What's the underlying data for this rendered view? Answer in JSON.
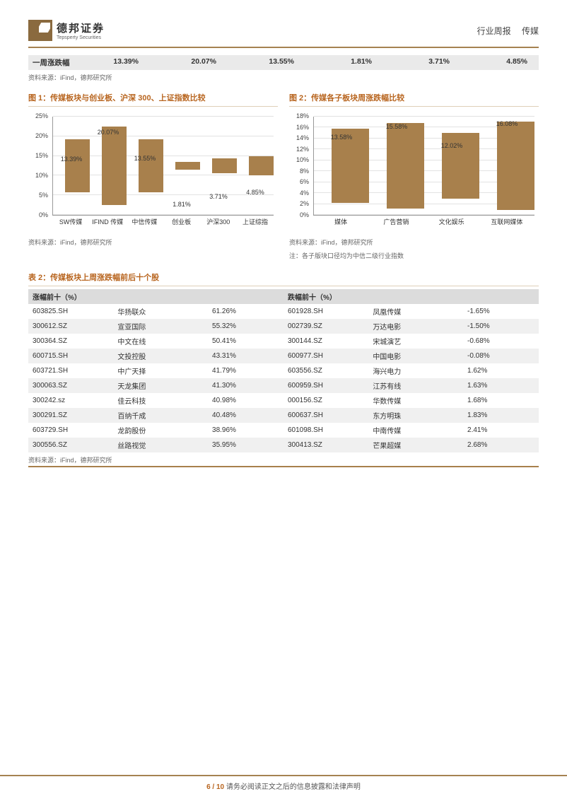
{
  "header": {
    "brand_zh": "德邦证券",
    "brand_en": "Tepsperty Securities",
    "category": "行业周报",
    "sector": "传媒"
  },
  "summary": {
    "label": "一周涨跌幅",
    "values": [
      "13.39%",
      "20.07%",
      "13.55%",
      "1.81%",
      "3.71%",
      "4.85%"
    ],
    "source": "资料来源：iFind，德邦研究所"
  },
  "chart1": {
    "title": "图 1：传媒板块与创业板、沪深 300、上证指数比较",
    "type": "bar",
    "y_max": 25,
    "y_step": 5,
    "y_suffix": "%",
    "categories": [
      "SW传媒",
      "IFIND 传媒",
      "中信传媒",
      "创业板",
      "沪深300",
      "上证综指"
    ],
    "values": [
      13.39,
      20.07,
      13.55,
      1.81,
      3.71,
      4.85
    ],
    "labels": [
      "13.39%",
      "20.07%",
      "13.55%",
      "1.81%",
      "3.71%",
      "4.85%"
    ],
    "bar_color": "#a8804c",
    "grid_color": "#e2e2e2",
    "source": "资料来源：iFind，德邦研究所"
  },
  "chart2": {
    "title": "图 2：传媒各子板块周涨跌幅比较",
    "type": "bar",
    "y_max": 18,
    "y_step": 2,
    "y_suffix": "%",
    "categories": [
      "媒体",
      "广告营销",
      "文化娱乐",
      "互联网媒体"
    ],
    "values": [
      13.58,
      15.58,
      12.02,
      16.08
    ],
    "labels": [
      "13.58%",
      "15.58%",
      "12.02%",
      "16.08%"
    ],
    "bar_color": "#a8804c",
    "grid_color": "#e2e2e2",
    "source": "资料来源：iFind，德邦研究所",
    "note": "注：各子版块口径均为中信二级行业指数"
  },
  "table": {
    "title": "表 2：传媒板块上周涨跌幅前后十个股",
    "header_left": "涨幅前十（%）",
    "header_right": "跌幅前十（%）",
    "rows": [
      {
        "lc": "603825.SH",
        "ln": "华扬联众",
        "lp": "61.26%",
        "rc": "601928.SH",
        "rn": "凤凰传媒",
        "rp": "-1.65%"
      },
      {
        "lc": "300612.SZ",
        "ln": "宣亚国际",
        "lp": "55.32%",
        "rc": "002739.SZ",
        "rn": "万达电影",
        "rp": "-1.50%"
      },
      {
        "lc": "300364.SZ",
        "ln": "中文在线",
        "lp": "50.41%",
        "rc": "300144.SZ",
        "rn": "宋城演艺",
        "rp": "-0.68%"
      },
      {
        "lc": "600715.SH",
        "ln": "文投控股",
        "lp": "43.31%",
        "rc": "600977.SH",
        "rn": "中国电影",
        "rp": "-0.08%"
      },
      {
        "lc": "603721.SH",
        "ln": "中广天择",
        "lp": "41.79%",
        "rc": "603556.SZ",
        "rn": "海兴电力",
        "rp": "1.62%"
      },
      {
        "lc": "300063.SZ",
        "ln": "天龙集团",
        "lp": "41.30%",
        "rc": "600959.SH",
        "rn": "江苏有线",
        "rp": "1.63%"
      },
      {
        "lc": "300242.sz",
        "ln": "佳云科技",
        "lp": "40.98%",
        "rc": "000156.SZ",
        "rn": "华数传媒",
        "rp": "1.68%"
      },
      {
        "lc": "300291.SZ",
        "ln": "百纳千成",
        "lp": "40.48%",
        "rc": "600637.SH",
        "rn": "东方明珠",
        "rp": "1.83%"
      },
      {
        "lc": "603729.SH",
        "ln": "龙韵股份",
        "lp": "38.96%",
        "rc": "601098.SH",
        "rn": "中南传媒",
        "rp": "2.41%"
      },
      {
        "lc": "300556.SZ",
        "ln": "丝路视觉",
        "lp": "35.95%",
        "rc": "300413.SZ",
        "rn": "芒果超媒",
        "rp": "2.68%"
      }
    ],
    "source": "资料来源：iFind，德邦研究所"
  },
  "footer": {
    "page": "6 / 10",
    "disclaimer": "请务必阅读正文之后的信息披露和法律声明"
  }
}
